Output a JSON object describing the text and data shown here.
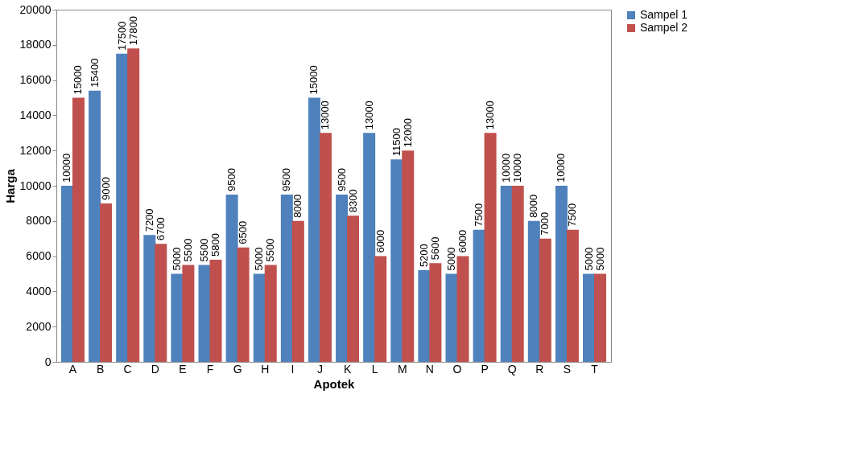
{
  "chart_data": {
    "type": "bar",
    "xlabel": "Apotek",
    "ylabel": "Harga",
    "categories": [
      "A",
      "B",
      "C",
      "D",
      "E",
      "F",
      "G",
      "H",
      "I",
      "J",
      "K",
      "L",
      "M",
      "N",
      "O",
      "P",
      "Q",
      "R",
      "S",
      "T"
    ],
    "series": [
      {
        "name": "Sampel 1",
        "color": "#4f81bd",
        "values": [
          10000,
          15400,
          17500,
          7200,
          5000,
          5500,
          9500,
          5000,
          9500,
          15000,
          9500,
          13000,
          11500,
          5200,
          5000,
          7500,
          10000,
          8000,
          10000,
          5000
        ]
      },
      {
        "name": "Sampel 2",
        "color": "#c0504d",
        "values": [
          15000,
          9000,
          17800,
          6700,
          5500,
          5800,
          6500,
          5500,
          8000,
          13000,
          8300,
          6000,
          12000,
          5600,
          6000,
          13000,
          10000,
          7000,
          7500,
          5000
        ]
      }
    ],
    "ylim": [
      0,
      20000
    ],
    "yticks": [
      0,
      2000,
      4000,
      6000,
      8000,
      10000,
      12000,
      14000,
      16000,
      18000,
      20000
    ],
    "grid": false,
    "legend": "right",
    "data_labels": true
  }
}
